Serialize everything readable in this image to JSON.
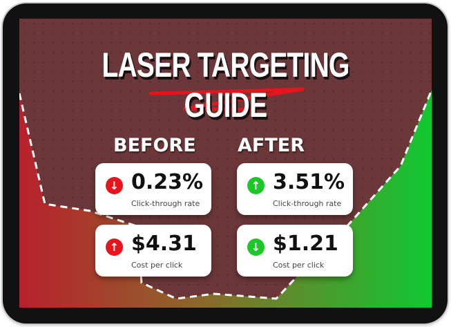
{
  "title": "LASER TARGETING GUIDE",
  "colors": {
    "background": "#6b3738",
    "red": "#e8141b",
    "green": "#1cc828"
  },
  "columns": [
    {
      "heading": "BEFORE",
      "cards": [
        {
          "value": "0.23%",
          "label": "Click-through rate",
          "icon": "arrow-down-icon",
          "icon_color": "red"
        },
        {
          "value": "$4.31",
          "label": "Cost per click",
          "icon": "arrow-up-icon",
          "icon_color": "red"
        }
      ]
    },
    {
      "heading": "AFTER",
      "cards": [
        {
          "value": "3.51%",
          "label": "Click-through rate",
          "icon": "arrow-up-icon",
          "icon_color": "green"
        },
        {
          "value": "$1.21",
          "label": "Cost per click",
          "icon": "arrow-down-icon",
          "icon_color": "green"
        }
      ]
    }
  ]
}
